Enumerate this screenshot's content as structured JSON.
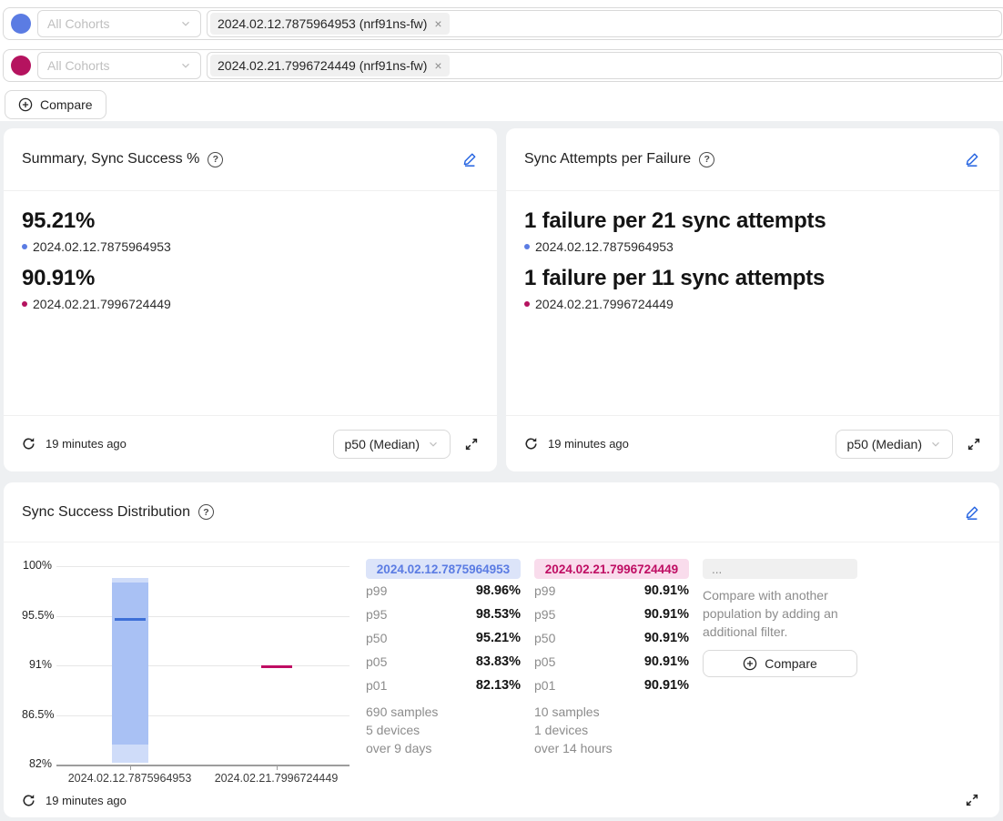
{
  "colors": {
    "page_bg": "#eef0f2",
    "border": "#d9d9d9",
    "divider": "#f0f0f0",
    "edit_accent": "#2161e0",
    "series1": "#5b7ce3",
    "series2": "#bf0d63",
    "series1_dot": "#5b7ce3",
    "series2_dot": "#b5135f",
    "series1_pill_bg": "#dce4f9",
    "series2_pill_bg": "#f9dcec",
    "neutral_pill_bg": "#f0f0f0"
  },
  "filter_bar": {
    "rows": [
      {
        "select_placeholder": "All Cohorts",
        "tag_label": "2024.02.12.7875964953 (nrf91ns-fw)",
        "remove_glyph": "×"
      },
      {
        "select_placeholder": "All Cohorts",
        "tag_label": "2024.02.21.7996724449 (nrf91ns-fw)",
        "remove_glyph": "×"
      }
    ],
    "compare_button_label": "Compare"
  },
  "summary_card": {
    "title": "Summary, Sync Success %",
    "help_glyph": "?",
    "entries": [
      {
        "value": "95.21%",
        "label": "2024.02.12.7875964953"
      },
      {
        "value": "90.91%",
        "label": "2024.02.21.7996724449"
      }
    ],
    "updated": "19 minutes ago",
    "percentile_selector": "p50 (Median)"
  },
  "attempts_card": {
    "title": "Sync Attempts per Failure",
    "help_glyph": "?",
    "entries": [
      {
        "value": "1 failure per 21 sync attempts",
        "label": "2024.02.12.7875964953"
      },
      {
        "value": "1 failure per 11 sync attempts",
        "label": "2024.02.21.7996724449"
      }
    ],
    "updated": "19 minutes ago",
    "percentile_selector": "p50 (Median)"
  },
  "distribution_card": {
    "title": "Sync Success Distribution",
    "help_glyph": "?",
    "updated": "19 minutes ago",
    "columns": [
      {
        "header": "2024.02.12.7875964953",
        "percentiles": [
          {
            "label": "p99",
            "value": "98.96%"
          },
          {
            "label": "p95",
            "value": "98.53%"
          },
          {
            "label": "p50",
            "value": "95.21%"
          },
          {
            "label": "p05",
            "value": "83.83%"
          },
          {
            "label": "p01",
            "value": "82.13%"
          }
        ],
        "samples": "690 samples",
        "devices": "5 devices",
        "duration": "over 9 days"
      },
      {
        "header": "2024.02.21.7996724449",
        "percentiles": [
          {
            "label": "p99",
            "value": "90.91%"
          },
          {
            "label": "p95",
            "value": "90.91%"
          },
          {
            "label": "p50",
            "value": "90.91%"
          },
          {
            "label": "p05",
            "value": "90.91%"
          },
          {
            "label": "p01",
            "value": "90.91%"
          }
        ],
        "samples": "10 samples",
        "devices": "1 devices",
        "duration": "over 14 hours"
      }
    ],
    "compare_column": {
      "header": "...",
      "text": "Compare with another population by adding an additional filter.",
      "button_label": "Compare"
    }
  },
  "chart_data": {
    "type": "box-distribution",
    "title": "Sync Success Distribution",
    "ylim": [
      82,
      100
    ],
    "yticks": [
      100,
      95.5,
      91,
      86.5,
      82
    ],
    "ytick_labels": [
      "100%",
      "95.5%",
      "91%",
      "86.5%",
      "82%"
    ],
    "grid": true,
    "legend": "none",
    "categories": [
      "2024.02.12.7875964953",
      "2024.02.21.7996724449"
    ],
    "series": [
      {
        "name": "2024.02.12.7875964953",
        "unit": "%",
        "p01": 82.13,
        "p05": 83.83,
        "p50": 95.21,
        "p95": 98.53,
        "p99": 98.96,
        "color_box": "#a9c1f4",
        "color_box_light": "#cfdcf9",
        "color_median": "#3d6fd7"
      },
      {
        "name": "2024.02.21.7996724449",
        "unit": "%",
        "p01": 90.91,
        "p05": 90.91,
        "p50": 90.91,
        "p95": 90.91,
        "p99": 90.91,
        "color_box": "#f3b9d4",
        "color_box_light": "#f9dcec",
        "color_median": "#bf0d63"
      }
    ]
  }
}
